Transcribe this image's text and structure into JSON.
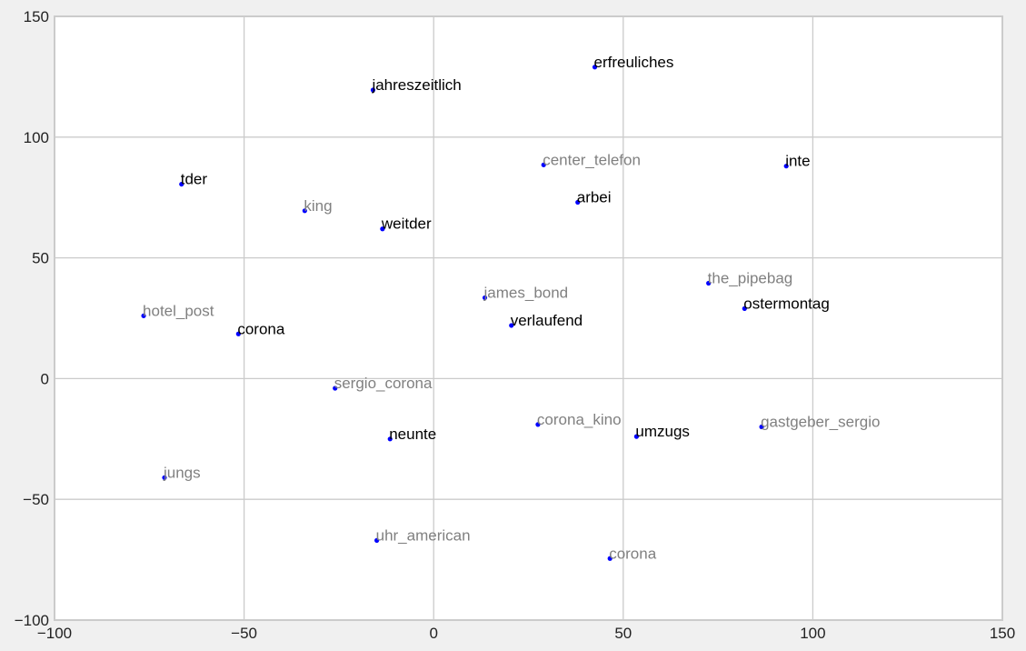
{
  "chart_data": {
    "type": "scatter",
    "title": "",
    "xlabel": "",
    "ylabel": "",
    "xlim": [
      -100,
      150
    ],
    "ylim": [
      -100,
      150
    ],
    "xticks": [
      -100,
      -50,
      0,
      50,
      100,
      150
    ],
    "yticks": [
      -100,
      -50,
      0,
      50,
      100,
      150
    ],
    "xtick_labels": [
      "−100",
      "−50",
      "0",
      "50",
      "100",
      "150"
    ],
    "ytick_labels": [
      "−100",
      "−50",
      "0",
      "50",
      "100",
      "150"
    ],
    "grid": true,
    "colors": {
      "background": "#f0f0f0",
      "plot_area": "#ffffff",
      "grid": "#cbcbcb",
      "frame": "#cbcbcb",
      "marker": "#0000ff",
      "label_primary": "#000000",
      "label_secondary": "#808080"
    },
    "points": [
      {
        "label": "erfreuliches",
        "x": 42.5,
        "y": 129,
        "style": "primary"
      },
      {
        "label": "jahreszeitlich",
        "x": -16,
        "y": 119.5,
        "style": "primary"
      },
      {
        "label": "center_telefon",
        "x": 29,
        "y": 88.5,
        "style": "secondary"
      },
      {
        "label": "inte",
        "x": 93,
        "y": 88,
        "style": "primary"
      },
      {
        "label": "tder",
        "x": -66.5,
        "y": 80.5,
        "style": "primary"
      },
      {
        "label": "arbei",
        "x": 38,
        "y": 73,
        "style": "primary"
      },
      {
        "label": "king",
        "x": -34,
        "y": 69.5,
        "style": "secondary"
      },
      {
        "label": "weitder",
        "x": -13.5,
        "y": 62,
        "style": "primary"
      },
      {
        "label": "the_pipebag",
        "x": 72.5,
        "y": 39.5,
        "style": "secondary"
      },
      {
        "label": "james_bond",
        "x": 13.5,
        "y": 33.5,
        "style": "secondary"
      },
      {
        "label": "ostermontag",
        "x": 82,
        "y": 29,
        "style": "primary"
      },
      {
        "label": "hotel_post",
        "x": -76.5,
        "y": 26,
        "style": "secondary"
      },
      {
        "label": "verlaufend",
        "x": 20.5,
        "y": 22,
        "style": "primary"
      },
      {
        "label": "corona",
        "x": -51.5,
        "y": 18.5,
        "style": "primary"
      },
      {
        "label": "sergio_corona",
        "x": -26,
        "y": -4,
        "style": "secondary"
      },
      {
        "label": "corona_kino",
        "x": 27.5,
        "y": -19,
        "style": "secondary"
      },
      {
        "label": "gastgeber_sergio",
        "x": 86.5,
        "y": -20,
        "style": "secondary"
      },
      {
        "label": "umzugs",
        "x": 53.5,
        "y": -24,
        "style": "primary"
      },
      {
        "label": "neunte",
        "x": -11.5,
        "y": -25,
        "style": "primary"
      },
      {
        "label": "jungs",
        "x": -71,
        "y": -41,
        "style": "secondary"
      },
      {
        "label": "uhr_american",
        "x": -15,
        "y": -67,
        "style": "secondary"
      },
      {
        "label": "corona",
        "x": 46.5,
        "y": -74.5,
        "style": "secondary"
      }
    ]
  }
}
